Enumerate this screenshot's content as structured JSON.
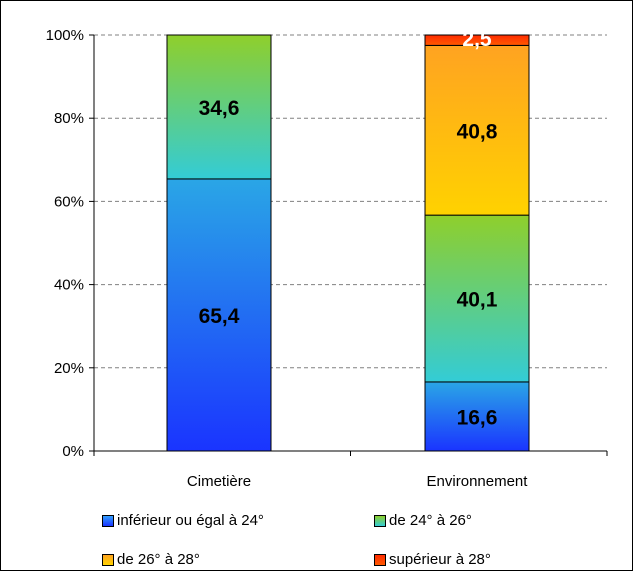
{
  "chart_data": {
    "type": "bar",
    "stacked": true,
    "percent": true,
    "categories": [
      "Cimetière",
      "Environnement"
    ],
    "series": [
      {
        "name": "inférieur ou égal à 24°",
        "values": [
          65.4,
          16.6
        ],
        "labels": [
          "65,4",
          "16,6"
        ],
        "color_top": "#2aa6e6",
        "color_bottom": "#1a34ff"
      },
      {
        "name": "de 24° à 26°",
        "values": [
          34.6,
          40.1
        ],
        "labels": [
          "34,6",
          "40,1"
        ],
        "color_top": "#8fcf2b",
        "color_bottom": "#33ccd6"
      },
      {
        "name": "de 26° à 28°",
        "values": [
          0,
          40.8
        ],
        "labels": [
          "",
          "40,8"
        ],
        "color_top": "#ffa321",
        "color_bottom": "#ffd200"
      },
      {
        "name": "supérieur à 28°",
        "values": [
          0,
          2.5
        ],
        "labels": [
          "",
          "2,5"
        ],
        "color_top": "#ff2b00",
        "color_bottom": "#ff5a00"
      }
    ],
    "ylim": [
      0,
      100
    ],
    "yticks": [
      "0%",
      "20%",
      "40%",
      "60%",
      "80%",
      "100%"
    ],
    "ytick_values": [
      0,
      20,
      40,
      60,
      80,
      100
    ],
    "grid": true,
    "legend_position": "bottom"
  }
}
